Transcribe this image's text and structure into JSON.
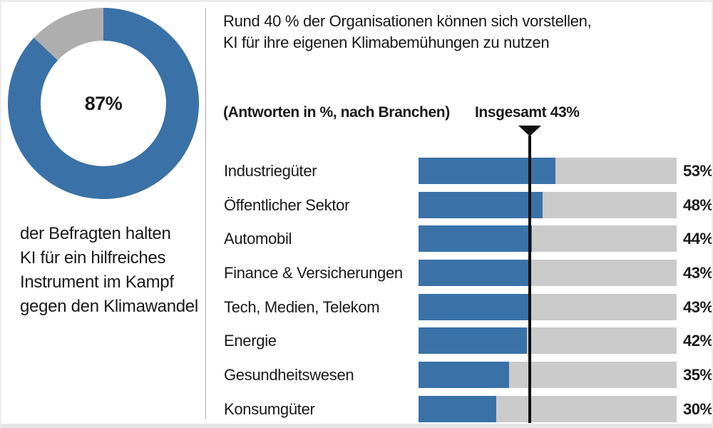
{
  "donut_panel": {
    "center_label": "87%",
    "caption": "der Befragten halten\nKI für ein hilfreiches\nInstrument im Kampf\ngegen den Klimawandel"
  },
  "header": {
    "title": "Rund 40 % der Organisationen können sich vorstellen,\nKI für ihre eigenen Klimabemühungen zu nutzen",
    "subtitle": "(Antworten in %, nach Branchen)",
    "overall_label": "Insgesamt 43%"
  },
  "colors": {
    "accent_blue": "#3A72A8",
    "bar_track_gray": "#CBCBCB",
    "donut_remainder_gray": "#AEAEAE",
    "marker_black": "#111111",
    "divider_gray": "#ABABAB",
    "text": "#1A1A1A"
  },
  "chart_data": [
    {
      "type": "pie",
      "subtype": "donut",
      "values": [
        87,
        13
      ],
      "colors": [
        "#3A72A8",
        "#AEAEAE"
      ],
      "center_label": "87%",
      "start_angle_deg": 0,
      "direction": "clockwise",
      "title": "der Befragten halten KI für ein hilfreiches Instrument im Kampf gegen den Klimawandel"
    },
    {
      "type": "bar",
      "orientation": "horizontal",
      "title": "(Antworten in %, nach Branchen)",
      "categories": [
        "Industriegüter",
        "Öffentlicher Sektor",
        "Automobil",
        "Finance & Versicherungen",
        "Tech, Medien, Telekom",
        "Energie",
        "Gesundheitswesen",
        "Konsumgüter"
      ],
      "values": [
        53,
        48,
        44,
        43,
        43,
        42,
        35,
        30
      ],
      "value_labels": [
        "53%",
        "48%",
        "44%",
        "43%",
        "43%",
        "42%",
        "35%",
        "30%"
      ],
      "xlim": [
        0,
        100
      ],
      "bar_color": "#3A72A8",
      "track_color": "#CBCBCB",
      "marker": {
        "label": "Insgesamt 43%",
        "value": 43
      },
      "grid": false,
      "legend": false
    }
  ]
}
